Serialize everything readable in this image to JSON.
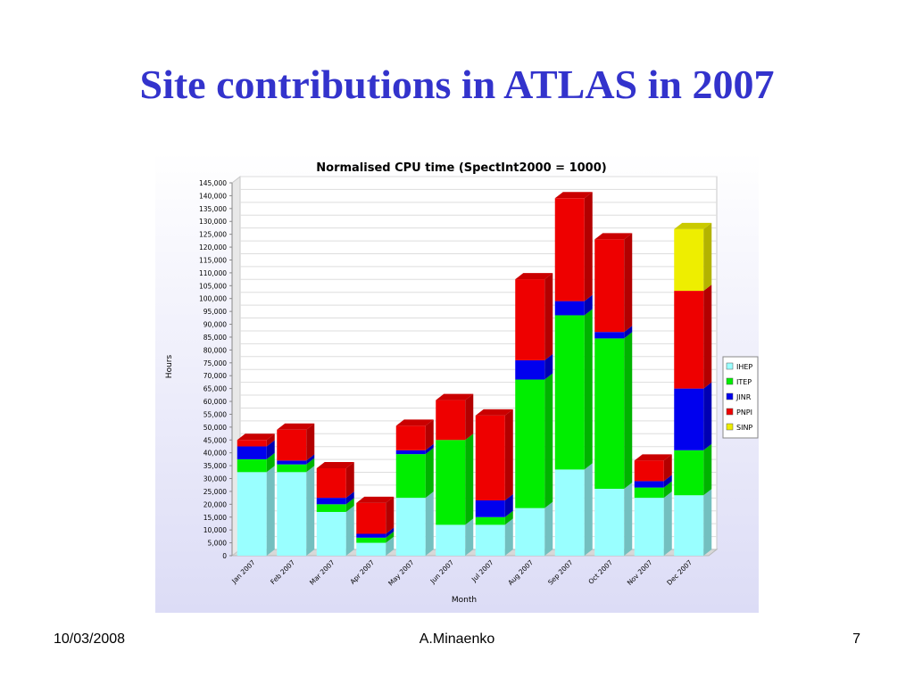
{
  "slide": {
    "title": "Site contributions in ATLAS in 2007",
    "footer_date": "10/03/2008",
    "footer_author": "A.Minaenko",
    "page_number": "7"
  },
  "chart_data": {
    "type": "bar",
    "stacked": true,
    "three_d": true,
    "title": "Normalised CPU time (SpectInt2000 = 1000)",
    "xlabel": "Month",
    "ylabel": "Hours",
    "ylim": [
      0,
      145000
    ],
    "y_tick_step": 5000,
    "grid": true,
    "legend_position": "right",
    "categories": [
      "Jan 2007",
      "Feb 2007",
      "Mar 2007",
      "Apr 2007",
      "May 2007",
      "Jun 2007",
      "Jul 2007",
      "Aug 2007",
      "Sep 2007",
      "Oct 2007",
      "Nov 2007",
      "Dec 2007"
    ],
    "series": [
      {
        "name": "IHEP",
        "color": "#99ffff",
        "values": [
          32500,
          32500,
          17000,
          5000,
          22500,
          12000,
          12000,
          18500,
          33500,
          26000,
          22500,
          23500
        ]
      },
      {
        "name": "ITEP",
        "color": "#00ee00",
        "values": [
          5000,
          3000,
          3000,
          2000,
          17000,
          33000,
          3000,
          50000,
          60000,
          58500,
          4000,
          17500
        ]
      },
      {
        "name": "JINR",
        "color": "#0000ee",
        "values": [
          5000,
          1500,
          2500,
          1500,
          1500,
          0,
          6500,
          7500,
          5500,
          2500,
          2500,
          24000
        ]
      },
      {
        "name": "PNPI",
        "color": "#ee0000",
        "values": [
          2500,
          12000,
          11500,
          12000,
          9500,
          15500,
          33000,
          31500,
          40000,
          36000,
          8000,
          38000
        ]
      },
      {
        "name": "SINP",
        "color": "#eeee00",
        "values": [
          0,
          0,
          0,
          0,
          0,
          0,
          0,
          0,
          0,
          0,
          0,
          24000
        ]
      }
    ]
  }
}
